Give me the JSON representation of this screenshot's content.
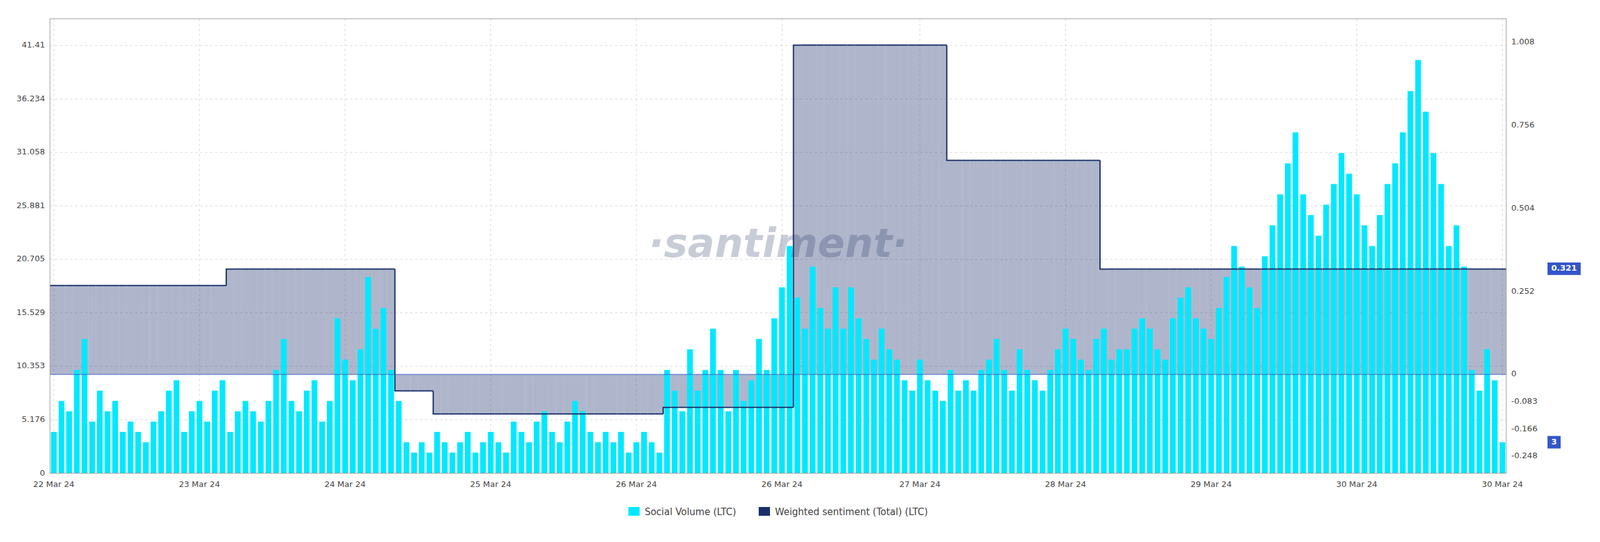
{
  "chart_data": {
    "type": "bar",
    "categories": [
      "22 Mar 24",
      null,
      null,
      null,
      null,
      null,
      null,
      null,
      null,
      null,
      null,
      null,
      null,
      null,
      null,
      null,
      null,
      null,
      null,
      "23 Mar 24",
      null,
      null,
      null,
      null,
      null,
      null,
      null,
      null,
      null,
      null,
      null,
      null,
      null,
      null,
      null,
      null,
      null,
      null,
      "24 Mar 24",
      null,
      null,
      null,
      null,
      null,
      null,
      null,
      null,
      null,
      null,
      null,
      null,
      null,
      null,
      null,
      null,
      null,
      null,
      "25 Mar 24",
      null,
      null,
      null,
      null,
      null,
      null,
      null,
      null,
      null,
      null,
      null,
      null,
      null,
      null,
      null,
      null,
      null,
      null,
      "26 Mar 24",
      null,
      null,
      null,
      null,
      null,
      null,
      null,
      null,
      null,
      null,
      null,
      null,
      null,
      null,
      null,
      null,
      null,
      null,
      "26 Mar 24",
      null,
      null,
      null,
      null,
      null,
      null,
      null,
      null,
      null,
      null,
      null,
      null,
      null,
      null,
      null,
      null,
      null,
      "27 Mar 24",
      null,
      null,
      null,
      null,
      null,
      null,
      null,
      null,
      null,
      null,
      null,
      null,
      null,
      null,
      null,
      null,
      null,
      null,
      "28 Mar 24",
      null,
      null,
      null,
      null,
      null,
      null,
      null,
      null,
      null,
      null,
      null,
      null,
      null,
      null,
      null,
      null,
      null,
      null,
      "29 Mar 24",
      null,
      null,
      null,
      null,
      null,
      null,
      null,
      null,
      null,
      null,
      null,
      null,
      null,
      null,
      null,
      null,
      null,
      null,
      "30 Mar 24",
      null,
      null,
      null,
      null,
      null,
      null,
      null,
      null,
      null,
      null,
      null,
      null,
      null,
      null,
      null,
      null,
      null,
      null,
      "30 Mar 24"
    ],
    "series": [
      {
        "name": "Social Volume (LTC)",
        "type": "bar",
        "color": "#00e8ff",
        "values": [
          4,
          7,
          6,
          10,
          13,
          5,
          8,
          6,
          7,
          4,
          5,
          4,
          3,
          5,
          6,
          8,
          9,
          4,
          6,
          7,
          5,
          8,
          9,
          4,
          6,
          7,
          6,
          5,
          7,
          10,
          13,
          7,
          6,
          8,
          9,
          5,
          7,
          15,
          11,
          9,
          12,
          19,
          14,
          16,
          10,
          7,
          3,
          2,
          3,
          2,
          4,
          3,
          2,
          3,
          4,
          2,
          3,
          4,
          3,
          2,
          5,
          4,
          3,
          5,
          6,
          4,
          3,
          5,
          7,
          6,
          4,
          3,
          4,
          3,
          4,
          2,
          3,
          4,
          3,
          2,
          10,
          8,
          6,
          12,
          8,
          10,
          14,
          10,
          6,
          10,
          7,
          9,
          13,
          10,
          15,
          18,
          22,
          17,
          14,
          20,
          16,
          14,
          18,
          14,
          18,
          15,
          13,
          11,
          14,
          12,
          11,
          9,
          8,
          11,
          9,
          8,
          7,
          10,
          8,
          9,
          8,
          10,
          11,
          13,
          10,
          8,
          12,
          10,
          9,
          8,
          10,
          12,
          14,
          13,
          11,
          10,
          13,
          14,
          11,
          12,
          12,
          14,
          15,
          14,
          12,
          11,
          15,
          17,
          18,
          15,
          14,
          13,
          16,
          19,
          22,
          20,
          18,
          16,
          21,
          24,
          27,
          30,
          33,
          27,
          25,
          23,
          26,
          28,
          31,
          29,
          27,
          24,
          22,
          25,
          28,
          30,
          33,
          37,
          40,
          35,
          31,
          28,
          22,
          24,
          20,
          10,
          8,
          12,
          9,
          3
        ]
      },
      {
        "name": "Weighted sentiment (Total) (LTC)",
        "type": "step",
        "axis": "y2",
        "color": "#1a2f6a",
        "values": [
          0.27,
          0.27,
          0.27,
          0.27,
          0.27,
          0.27,
          0.27,
          0.27,
          0.27,
          0.27,
          0.27,
          0.27,
          0.27,
          0.27,
          0.27,
          0.27,
          0.27,
          0.27,
          0.27,
          0.27,
          0.27,
          0.27,
          0.27,
          0.32,
          0.32,
          0.32,
          0.32,
          0.32,
          0.32,
          0.32,
          0.32,
          0.32,
          0.32,
          0.32,
          0.32,
          0.32,
          0.32,
          0.32,
          0.32,
          0.32,
          0.32,
          0.32,
          0.32,
          0.32,
          0.32,
          -0.05,
          -0.05,
          -0.05,
          -0.05,
          -0.05,
          -0.12,
          -0.12,
          -0.12,
          -0.12,
          -0.12,
          -0.12,
          -0.12,
          -0.12,
          -0.12,
          -0.12,
          -0.12,
          -0.12,
          -0.12,
          -0.12,
          -0.12,
          -0.12,
          -0.12,
          -0.12,
          -0.12,
          -0.12,
          -0.12,
          -0.12,
          -0.12,
          -0.12,
          -0.12,
          -0.12,
          -0.12,
          -0.12,
          -0.12,
          -0.12,
          -0.1,
          -0.1,
          -0.1,
          -0.1,
          -0.1,
          -0.1,
          -0.1,
          -0.1,
          -0.1,
          -0.1,
          -0.1,
          -0.1,
          -0.1,
          -0.1,
          -0.1,
          -0.1,
          -0.1,
          1.0,
          1.0,
          1.0,
          1.0,
          1.0,
          1.0,
          1.0,
          1.0,
          1.0,
          1.0,
          1.0,
          1.0,
          1.0,
          1.0,
          1.0,
          1.0,
          1.0,
          1.0,
          1.0,
          1.0,
          0.65,
          0.65,
          0.65,
          0.65,
          0.65,
          0.65,
          0.65,
          0.65,
          0.65,
          0.65,
          0.65,
          0.65,
          0.65,
          0.65,
          0.65,
          0.65,
          0.65,
          0.65,
          0.65,
          0.65,
          0.32,
          0.32,
          0.32,
          0.32,
          0.32,
          0.32,
          0.32,
          0.32,
          0.32,
          0.32,
          0.32,
          0.32,
          0.32,
          0.32,
          0.32,
          0.32,
          0.32,
          0.32,
          0.32,
          0.32,
          0.32,
          0.32,
          0.32,
          0.32,
          0.32,
          0.32,
          0.32,
          0.32,
          0.32,
          0.32,
          0.32,
          0.32,
          0.32,
          0.32,
          0.32,
          0.32,
          0.32,
          0.32,
          0.32,
          0.32,
          0.32,
          0.32,
          0.32,
          0.32,
          0.32,
          0.32,
          0.32,
          0.32,
          0.32,
          0.32,
          0.32,
          0.32,
          0.32
        ]
      }
    ],
    "ylim": [
      0,
      44.0
    ],
    "yticks": [
      0,
      5.176,
      10.353,
      15.529,
      20.705,
      25.881,
      31.058,
      36.234,
      41.41
    ],
    "y2lim": [
      -0.3,
      1.08
    ],
    "y2ticks": [
      -0.248,
      -0.166,
      -0.083,
      0,
      0.252,
      0.504,
      0.756,
      1.008
    ],
    "annotations": [
      {
        "text": "·santiment·"
      },
      {
        "text": "0.321",
        "y": 0.321,
        "axis": "y2"
      },
      {
        "text": "3",
        "y": 3
      }
    ],
    "grid": true,
    "legend": "bottom"
  }
}
